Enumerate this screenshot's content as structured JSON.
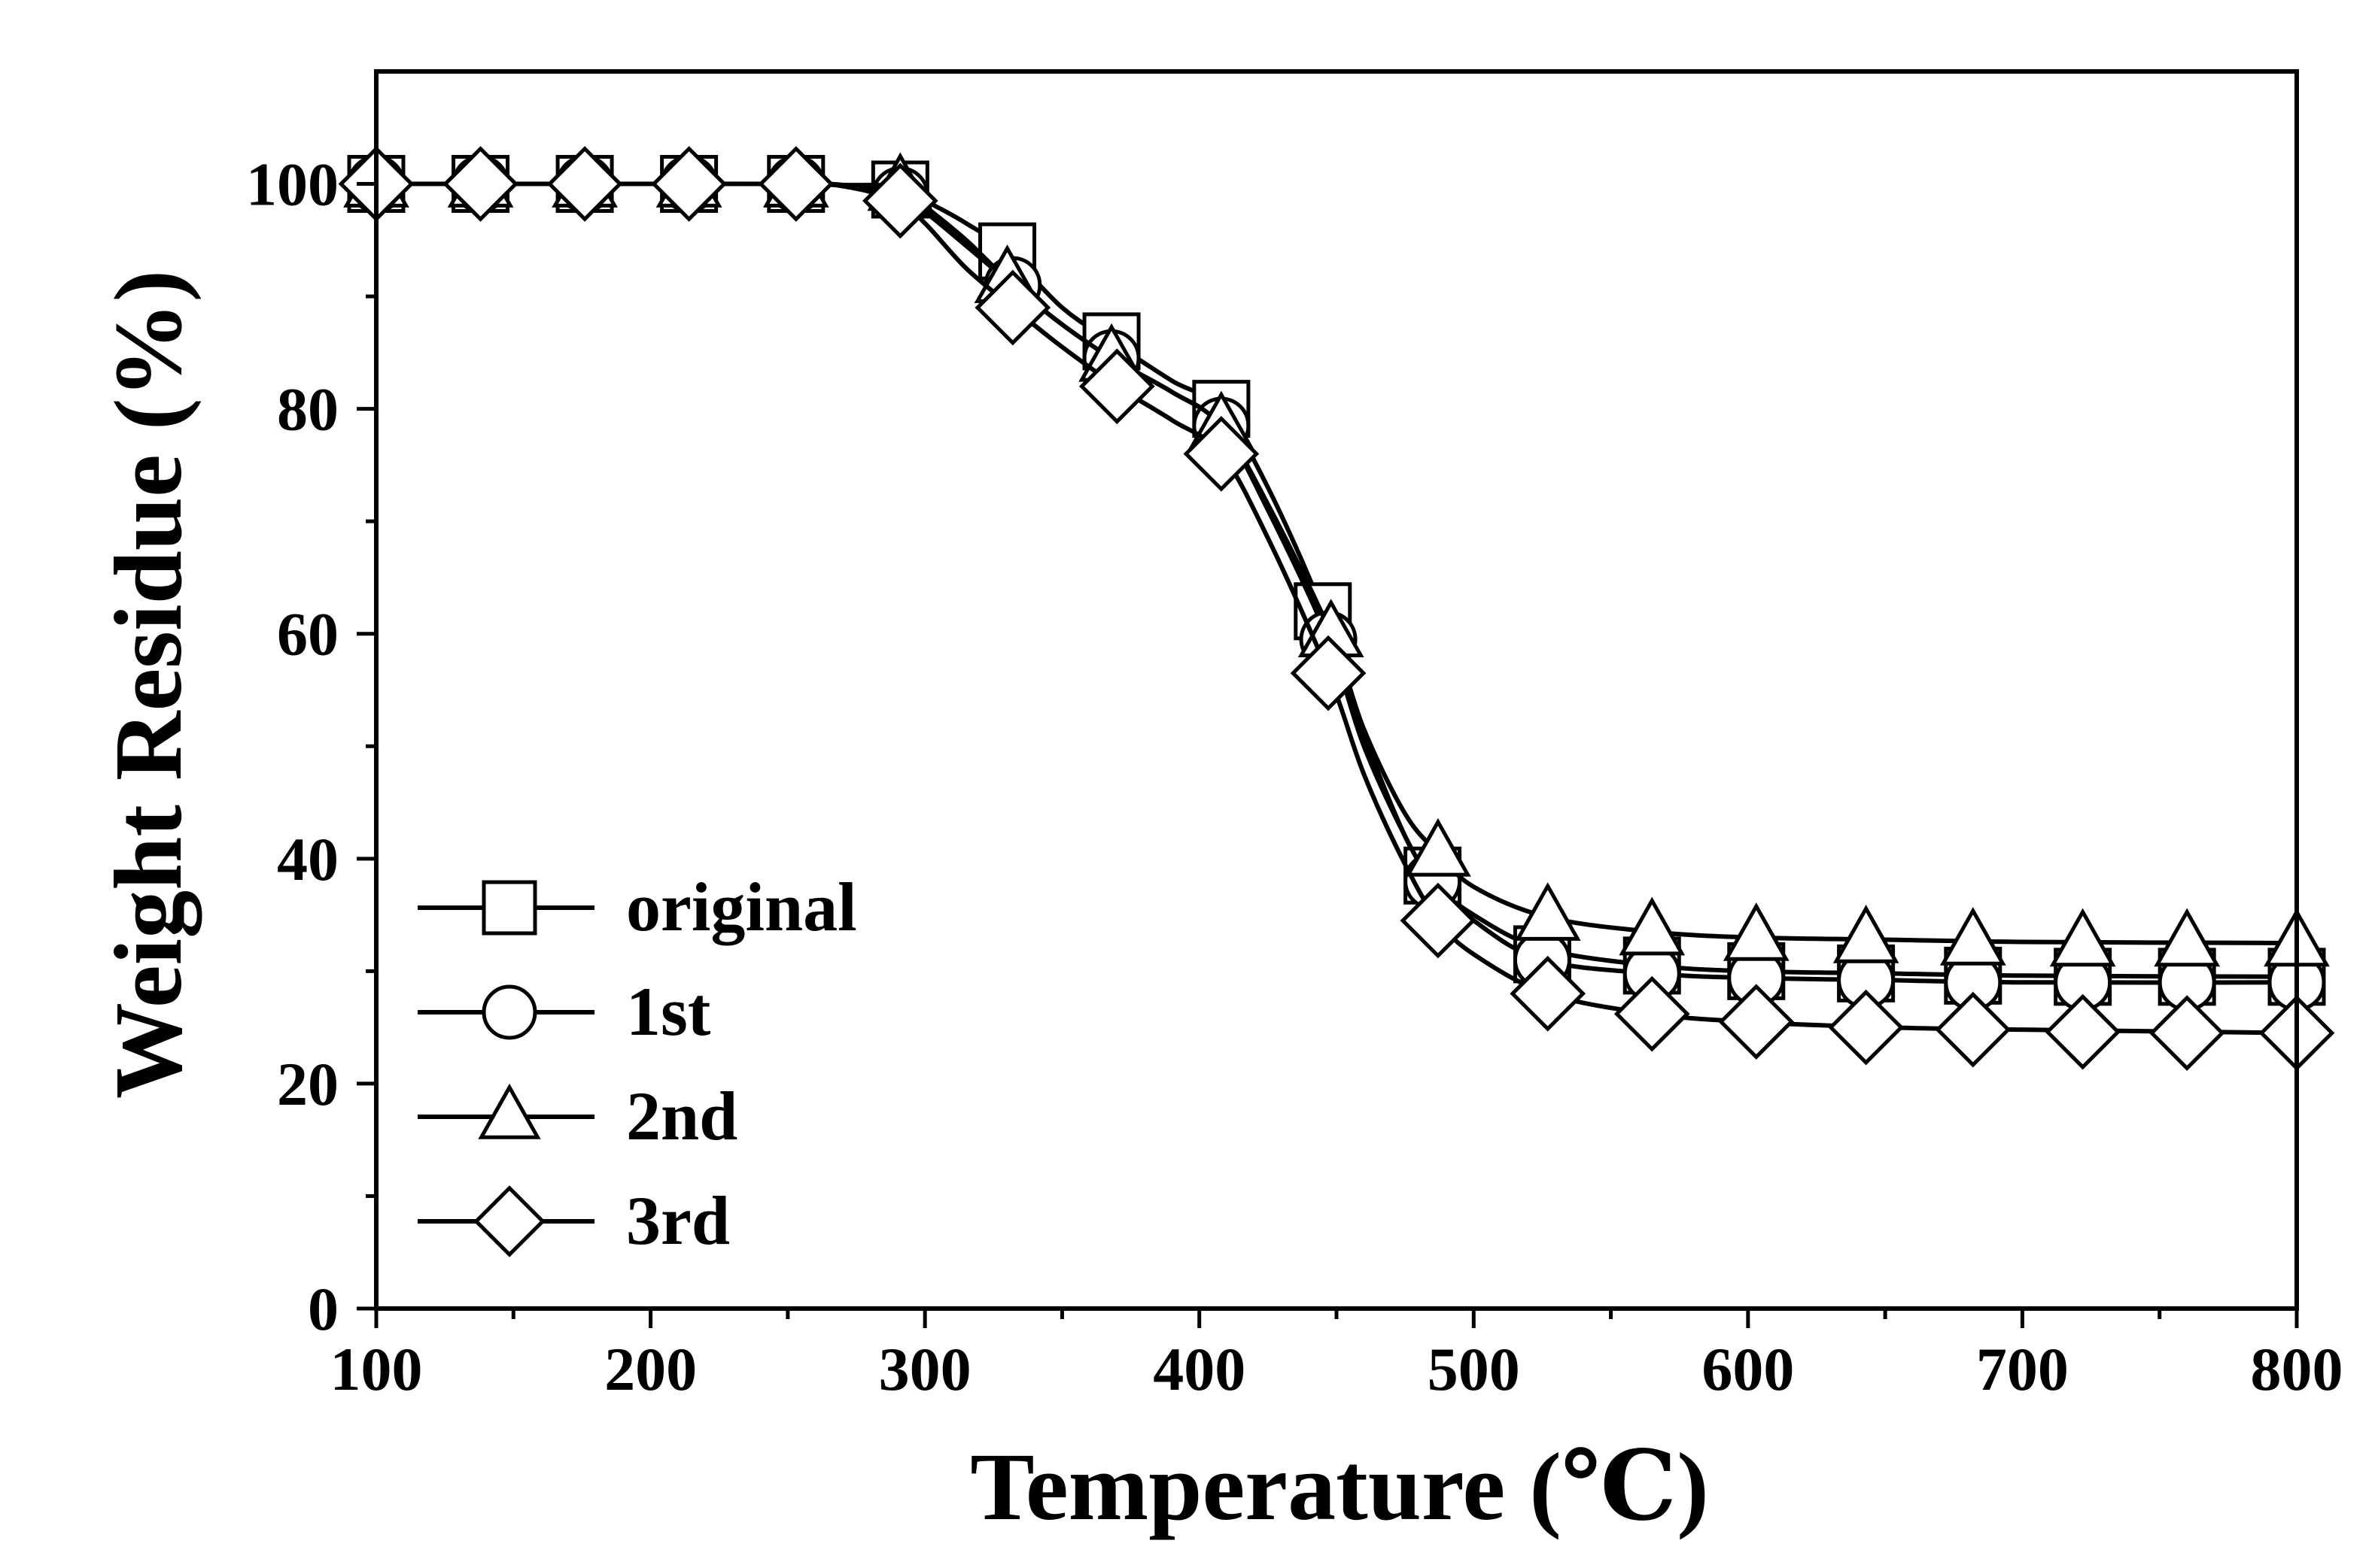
{
  "chart_data": {
    "type": "line",
    "title": "",
    "xlabel": "Temperature (℃)",
    "ylabel": "Weight Residue (%)",
    "xlim": [
      100,
      800
    ],
    "ylim": [
      0,
      110
    ],
    "xticks": [
      100,
      200,
      300,
      400,
      500,
      600,
      700,
      800
    ],
    "yticks": [
      0,
      20,
      40,
      60,
      80,
      100
    ],
    "x_tick_labels": [
      "100",
      "200",
      "300",
      "400",
      "500",
      "600",
      "700",
      "800"
    ],
    "y_tick_labels": [
      "0",
      "20",
      "40",
      "60",
      "80",
      "100"
    ],
    "grid": false,
    "legend_position": "bottom-left",
    "series": [
      {
        "name": "original",
        "marker": "square",
        "curve_x": [
          100,
          150,
          200,
          250,
          270,
          290,
          300,
          315,
          330,
          350,
          368,
          390,
          408,
          425,
          445,
          460,
          475,
          485,
          500,
          525,
          565,
          600,
          650,
          700,
          800
        ],
        "curve_y": [
          100,
          100,
          100,
          100,
          99.9,
          99.5,
          98.5,
          96.5,
          94.0,
          89.0,
          86.0,
          82.5,
          80.0,
          73.0,
          62.0,
          51.0,
          42.0,
          38.0,
          35.0,
          32.0,
          30.5,
          30.0,
          29.8,
          29.6,
          29.5
        ],
        "marker_x": [
          100,
          138,
          176,
          214,
          253,
          291,
          330,
          368,
          408,
          445,
          485,
          525,
          565,
          603,
          643,
          682,
          722,
          760,
          800
        ],
        "marker_y": [
          100,
          100,
          100,
          100,
          100,
          99.5,
          94.0,
          86.0,
          80.0,
          62.0,
          38.5,
          31.5,
          30.5,
          30.0,
          29.8,
          29.6,
          29.5,
          29.5,
          29.5
        ]
      },
      {
        "name": "1st",
        "marker": "circle",
        "curve_x": [
          100,
          150,
          200,
          250,
          270,
          290,
          300,
          315,
          332,
          350,
          368,
          390,
          408,
          425,
          447,
          460,
          475,
          485,
          500,
          525,
          565,
          600,
          650,
          700,
          800
        ],
        "curve_y": [
          100,
          100,
          100,
          100,
          99.9,
          99.0,
          97.5,
          94.5,
          91.0,
          87.5,
          84.5,
          81.5,
          78.5,
          71.0,
          59.5,
          50.0,
          42.0,
          38.0,
          34.5,
          31.0,
          29.8,
          29.4,
          29.2,
          29.0,
          29.0
        ],
        "marker_x": [
          100,
          138,
          176,
          214,
          253,
          291,
          332,
          368,
          408,
          447,
          485,
          525,
          565,
          603,
          643,
          682,
          722,
          760,
          800
        ],
        "marker_y": [
          100,
          100,
          100,
          100,
          100,
          99.0,
          91.0,
          84.5,
          78.5,
          59.5,
          38.0,
          31.0,
          29.8,
          29.4,
          29.2,
          29.0,
          29.0,
          29.0,
          29.0
        ]
      },
      {
        "name": "2nd",
        "marker": "triangle",
        "curve_x": [
          100,
          150,
          200,
          250,
          270,
          290,
          300,
          315,
          330,
          350,
          368,
          390,
          408,
          425,
          448,
          460,
          475,
          487,
          500,
          527,
          565,
          600,
          650,
          700,
          800
        ],
        "curve_y": [
          100,
          100,
          100,
          100,
          99.9,
          99.7,
          98.0,
          95.0,
          91.5,
          87.5,
          84.5,
          81.5,
          78.5,
          71.5,
          60.0,
          51.5,
          44.0,
          40.5,
          37.5,
          34.8,
          33.5,
          33.0,
          32.8,
          32.6,
          32.5
        ],
        "marker_x": [
          100,
          138,
          176,
          214,
          253,
          291,
          330,
          368,
          408,
          448,
          487,
          527,
          565,
          603,
          643,
          682,
          722,
          760,
          800
        ],
        "marker_y": [
          100,
          100,
          100,
          100,
          100,
          99.7,
          91.5,
          84.5,
          78.5,
          60.0,
          40.5,
          34.8,
          33.5,
          33.0,
          32.8,
          32.6,
          32.5,
          32.5,
          32.5
        ]
      },
      {
        "name": "3rd",
        "marker": "diamond",
        "curve_x": [
          100,
          150,
          200,
          250,
          270,
          290,
          300,
          315,
          332,
          350,
          370,
          390,
          408,
          425,
          447,
          460,
          475,
          487,
          500,
          527,
          565,
          600,
          650,
          700,
          800
        ],
        "curve_y": [
          100,
          100,
          100,
          100,
          99.8,
          98.5,
          96.5,
          92.5,
          89.0,
          85.5,
          82.0,
          79.0,
          76.0,
          68.5,
          56.5,
          47.5,
          39.5,
          34.5,
          31.5,
          28.0,
          26.2,
          25.5,
          25.0,
          24.8,
          24.5
        ],
        "marker_x": [
          100,
          138,
          176,
          214,
          253,
          291,
          332,
          370,
          408,
          447,
          487,
          527,
          565,
          603,
          643,
          682,
          722,
          760,
          800
        ],
        "marker_y": [
          100,
          100,
          100,
          100,
          100,
          98.5,
          89.0,
          82.0,
          76.0,
          56.5,
          34.5,
          28.0,
          26.2,
          25.5,
          25.0,
          24.8,
          24.6,
          24.5,
          24.5
        ]
      }
    ]
  }
}
